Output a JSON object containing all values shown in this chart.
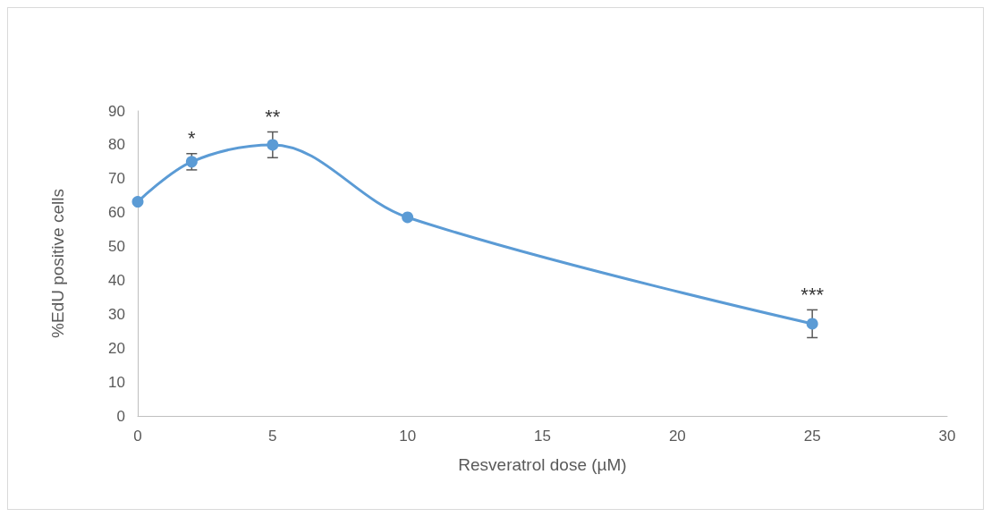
{
  "chart_data": {
    "type": "line",
    "xlabel": "Resveratrol dose (µM)",
    "ylabel": "%EdU positive cells",
    "x": [
      0,
      2,
      5,
      10,
      25
    ],
    "series": [
      {
        "color": "#5b9bd5",
        "values": [
          63.2,
          75,
          80,
          58.6,
          27.2
        ],
        "errors": [
          null,
          2.4,
          3.8,
          null,
          4.1
        ]
      }
    ],
    "xlim": [
      0,
      30
    ],
    "xticks": [
      0,
      5,
      10,
      15,
      20,
      25,
      30
    ],
    "ylim": [
      0,
      90
    ],
    "yticks": [
      0,
      10,
      20,
      30,
      40,
      50,
      60,
      70,
      80,
      90
    ],
    "grid": false,
    "marker": "circle",
    "line_style": "solid",
    "annotations": [
      {
        "text": "*",
        "x": 2,
        "y": 75
      },
      {
        "text": "**",
        "x": 5,
        "y": 80
      },
      {
        "text": "***",
        "x": 25,
        "y": 27.2
      }
    ]
  }
}
